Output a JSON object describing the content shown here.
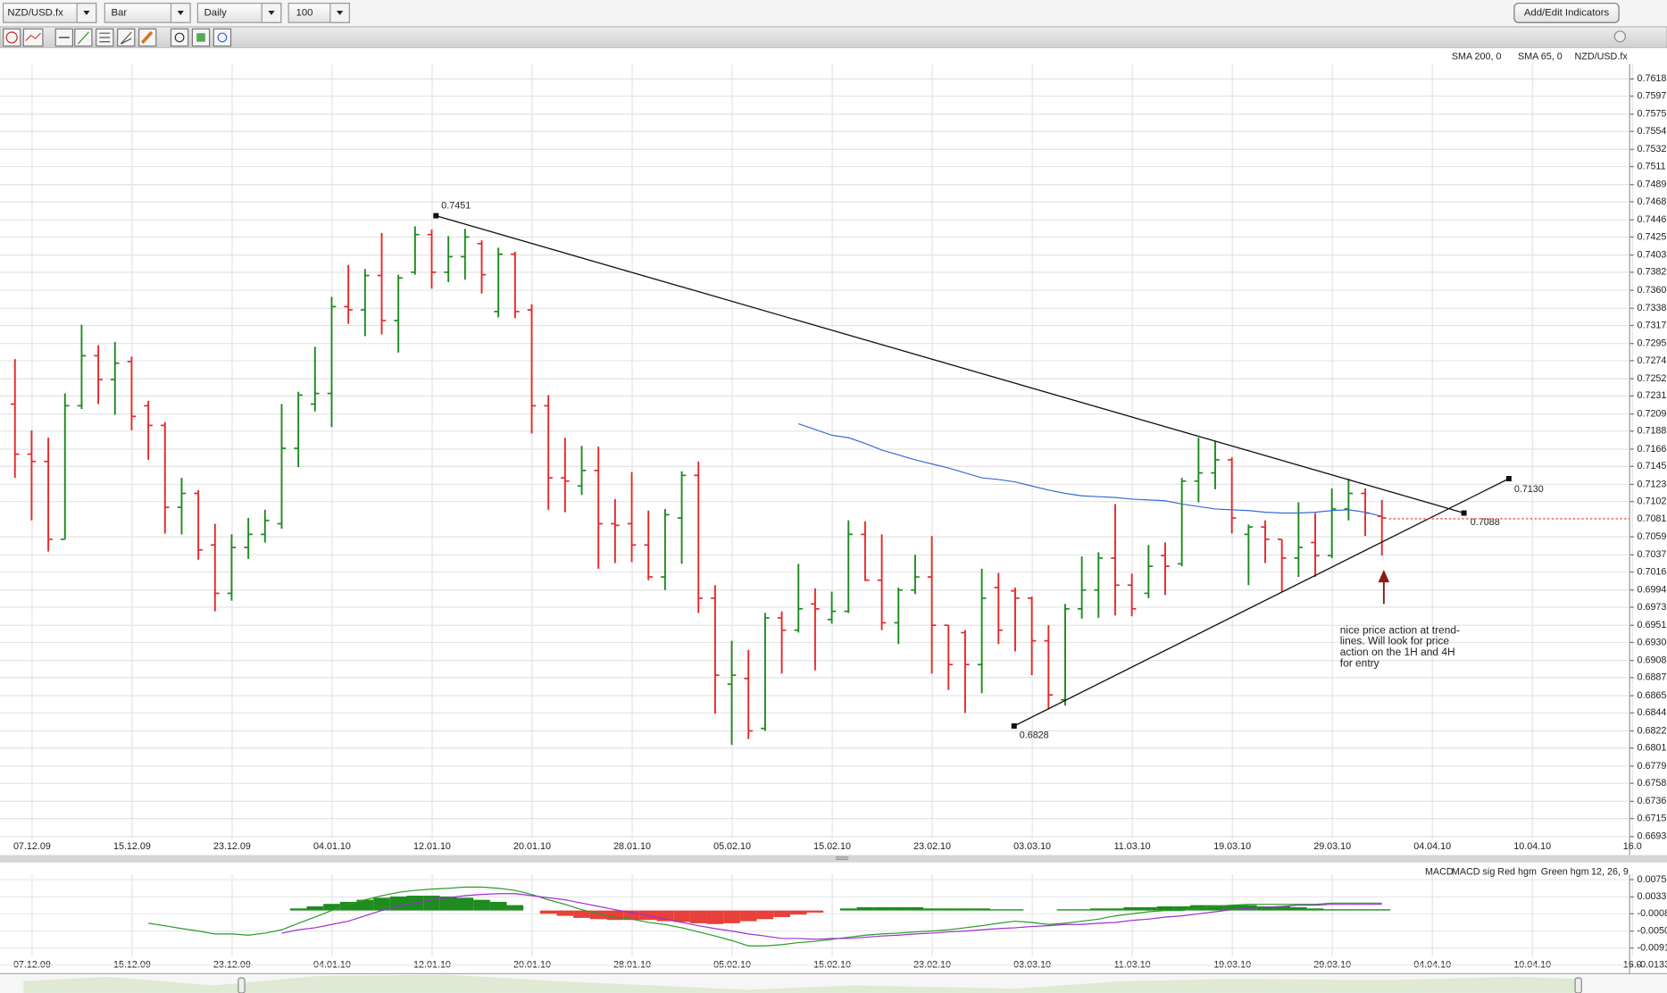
{
  "toolbar": {
    "symbol": "NZD/USD.fx",
    "chart_type": "Bar",
    "interval": "Daily",
    "bars": "100",
    "indicators_button": "Add/Edit Indicators"
  },
  "chart_data": [
    {
      "type": "ohlc",
      "symbol": "NZD/USD.fx",
      "up_color": "#1e8a1e",
      "down_color": "#e8282a",
      "indicator_lines": [
        {
          "name": "SMA 200, 0",
          "color": "#1e8a1e"
        },
        {
          "name": "SMA 65, 0",
          "color": "#3b6bd6",
          "values": [
            null,
            null,
            null,
            null,
            null,
            null,
            null,
            null,
            null,
            null,
            null,
            null,
            null,
            null,
            null,
            null,
            null,
            null,
            null,
            null,
            null,
            null,
            null,
            null,
            null,
            null,
            null,
            null,
            null,
            null,
            null,
            null,
            null,
            null,
            null,
            null,
            null,
            null,
            null,
            null,
            null,
            null,
            null,
            null,
            null,
            null,
            null,
            0.7197,
            0.719,
            0.7183,
            0.718,
            0.7173,
            0.7165,
            0.7159,
            0.7153,
            0.7148,
            0.7143,
            0.7137,
            0.7131,
            0.7129,
            0.7126,
            0.7121,
            0.7116,
            0.7112,
            0.7109,
            0.7108,
            0.7107,
            0.7105,
            0.7104,
            0.7103,
            0.7099,
            0.7096,
            0.7093,
            0.7092,
            0.7091,
            0.7089,
            0.7088,
            0.7088,
            0.7089,
            0.7091,
            0.7092,
            0.7089,
            0.7084
          ]
        }
      ],
      "x_labels": [
        "07.12.09",
        "15.12.09",
        "23.12.09",
        "04.01.10",
        "12.01.10",
        "20.01.10",
        "28.01.10",
        "05.02.10",
        "15.02.10",
        "23.02.10",
        "03.03.10",
        "11.03.10",
        "19.03.10",
        "29.03.10",
        "04.04.10",
        "10.04.10",
        "16.0"
      ],
      "ylim": [
        0.669,
        0.7636
      ],
      "yticks": [
        0.7618,
        0.7597,
        0.7575,
        0.7554,
        0.7532,
        0.7511,
        0.7489,
        0.7468,
        0.7446,
        0.7425,
        0.7403,
        0.7382,
        {
          "value": 0.736,
          "label": "0.7360"
        },
        0.7338,
        0.7317,
        0.7295,
        0.7274,
        0.7252,
        0.7231,
        0.7209,
        0.7188,
        0.7166,
        0.7145,
        0.7123,
        0.7102,
        0.7059,
        0.7037,
        0.7016,
        0.6994,
        0.6973,
        0.6951,
        {
          "value": 0.693,
          "label": "0.6930"
        },
        0.6908,
        0.6887,
        0.6865,
        0.6844,
        0.6822,
        0.6801,
        0.6779,
        0.6758,
        0.6736,
        0.6715,
        0.6693
      ],
      "grid": true,
      "last_price": {
        "value": 0.7081,
        "color": "#e8282a"
      },
      "trendlines": [
        {
          "values": [
            0.7451,
            0.7088
          ],
          "value_labels": [
            "0.7451",
            "0.7088"
          ],
          "color": "#111111"
        },
        {
          "values": [
            0.6828,
            0.713
          ],
          "value_labels": [
            "0.6828",
            "0.7130"
          ],
          "color": "#111111"
        }
      ],
      "annotation": {
        "lines": [
          "nice price action at trend-",
          "lines. Will look for price",
          "action on the 1H and 4H",
          "for entry"
        ],
        "arrow_color": "#8b1a1a"
      },
      "ohlc": [
        [
          0.7221,
          0.7276,
          0.7131,
          0.716
        ],
        [
          0.716,
          0.7189,
          0.7079,
          0.7151
        ],
        [
          0.7151,
          0.718,
          0.7041,
          0.7056
        ],
        [
          0.7056,
          0.7234,
          0.7056,
          0.7219
        ],
        [
          0.7219,
          0.7318,
          0.7215,
          0.728
        ],
        [
          0.728,
          0.7293,
          0.7221,
          0.7251
        ],
        [
          0.7251,
          0.7297,
          0.7208,
          0.7271
        ],
        [
          0.7273,
          0.7279,
          0.7189,
          0.7206
        ],
        [
          0.7219,
          0.7225,
          0.7153,
          0.7195
        ],
        [
          0.7195,
          0.7199,
          0.7063,
          0.7095
        ],
        [
          0.7095,
          0.7131,
          0.7062,
          0.7112
        ],
        [
          0.7112,
          0.7116,
          0.7031,
          0.7043
        ],
        [
          0.7049,
          0.7075,
          0.6968,
          0.699
        ],
        [
          0.699,
          0.7062,
          0.6981,
          0.7046
        ],
        [
          0.7046,
          0.7082,
          0.7032,
          0.7062
        ],
        [
          0.7062,
          0.7092,
          0.7052,
          0.7079
        ],
        [
          0.7075,
          0.7221,
          0.7069,
          0.7167
        ],
        [
          0.7167,
          0.7236,
          0.7144,
          0.7232
        ],
        [
          0.7221,
          0.7291,
          0.7212,
          0.7234
        ],
        [
          0.7234,
          0.7352,
          0.7193,
          0.734
        ],
        [
          0.734,
          0.7391,
          0.7319,
          0.7336
        ],
        [
          0.7336,
          0.7386,
          0.7304,
          0.7378
        ],
        [
          0.7378,
          0.743,
          0.7306,
          0.7323
        ],
        [
          0.7323,
          0.7379,
          0.7284,
          0.7375
        ],
        [
          0.7382,
          0.7438,
          0.7379,
          0.7428
        ],
        [
          0.7428,
          0.7434,
          0.7362,
          0.7382
        ],
        [
          0.7382,
          0.7426,
          0.737,
          0.7401
        ],
        [
          0.7401,
          0.7435,
          0.7373,
          0.7425
        ],
        [
          0.7417,
          0.7421,
          0.7356,
          0.7379
        ],
        [
          0.7334,
          0.7412,
          0.7327,
          0.7404
        ],
        [
          0.7404,
          0.7407,
          0.7326,
          0.7334
        ],
        [
          0.7336,
          0.7343,
          0.7185,
          0.7219
        ],
        [
          0.7219,
          0.7232,
          0.7092,
          0.7131
        ],
        [
          0.7131,
          0.718,
          0.7089,
          0.7127
        ],
        [
          0.7121,
          0.717,
          0.711,
          0.714
        ],
        [
          0.714,
          0.7169,
          0.702,
          0.7075
        ],
        [
          0.7075,
          0.7105,
          0.7027,
          0.7073
        ],
        [
          0.7075,
          0.7138,
          0.7028,
          0.7049
        ],
        [
          0.7049,
          0.7091,
          0.7006,
          0.701
        ],
        [
          0.701,
          0.7093,
          0.6994,
          0.7086
        ],
        [
          0.7082,
          0.7139,
          0.7026,
          0.7134
        ],
        [
          0.7134,
          0.7151,
          0.6966,
          0.6984
        ],
        [
          0.6984,
          0.7,
          0.6843,
          0.689
        ],
        [
          0.6879,
          0.6932,
          0.6805,
          0.689
        ],
        [
          0.6886,
          0.6921,
          0.6812,
          0.6822
        ],
        [
          0.6825,
          0.6966,
          0.6822,
          0.696
        ],
        [
          0.696,
          0.6968,
          0.6892,
          0.6945
        ],
        [
          0.6945,
          0.7026,
          0.6942,
          0.6971
        ],
        [
          0.6977,
          0.6996,
          0.6896,
          0.6971
        ],
        [
          0.6958,
          0.6992,
          0.6953,
          0.6968
        ],
        [
          0.6968,
          0.7079,
          0.6966,
          0.7062
        ],
        [
          0.7062,
          0.7078,
          0.7005,
          0.7006
        ],
        [
          0.7006,
          0.7062,
          0.6945,
          0.6954
        ],
        [
          0.6954,
          0.6997,
          0.6928,
          0.6994
        ],
        [
          0.6994,
          0.7037,
          0.6989,
          0.701
        ],
        [
          0.701,
          0.706,
          0.6892,
          0.6951
        ],
        [
          0.6951,
          0.6951,
          0.6872,
          0.6903
        ],
        [
          0.6942,
          0.6945,
          0.6844,
          0.6903
        ],
        [
          0.6903,
          0.702,
          0.6868,
          0.6984
        ],
        [
          0.6997,
          0.7015,
          0.6928,
          0.6945
        ],
        [
          0.6993,
          0.6997,
          0.6919,
          0.6984
        ],
        [
          0.6984,
          0.6986,
          0.689,
          0.6932
        ],
        [
          0.6932,
          0.6951,
          0.6848,
          0.6866
        ],
        [
          0.686,
          0.6977,
          0.6853,
          0.6971
        ],
        [
          0.6971,
          0.7035,
          0.6959,
          0.6994
        ],
        [
          0.6994,
          0.704,
          0.696,
          0.7033
        ],
        [
          0.7033,
          0.7099,
          0.6963,
          0.7
        ],
        [
          0.7,
          0.7014,
          0.6962,
          0.6971
        ],
        [
          0.699,
          0.7049,
          0.6984,
          0.7023
        ],
        [
          0.7036,
          0.7052,
          0.6988,
          0.7023
        ],
        [
          0.7026,
          0.7131,
          0.7023,
          0.7127
        ],
        [
          0.7127,
          0.718,
          0.7101,
          0.7137
        ],
        [
          0.7137,
          0.7176,
          0.7117,
          0.7153
        ],
        [
          0.7153,
          0.7156,
          0.7063,
          0.7082
        ],
        [
          0.7062,
          0.7074,
          0.7,
          0.7071
        ],
        [
          0.7071,
          0.7079,
          0.7027,
          0.7056
        ],
        [
          0.7056,
          0.7056,
          0.6992,
          0.7033
        ],
        [
          0.7033,
          0.7101,
          0.701,
          0.7046
        ],
        [
          0.7052,
          0.7088,
          0.701,
          0.7036
        ],
        [
          0.7036,
          0.7118,
          0.7033,
          0.7093
        ],
        [
          0.7093,
          0.713,
          0.7079,
          0.7112
        ],
        [
          0.7112,
          0.7118,
          0.706,
          0.7088
        ],
        [
          0.7084,
          0.7104,
          0.7036,
          0.7082
        ]
      ]
    },
    {
      "type": "macd",
      "legend": [
        {
          "name": "MACD",
          "color": "#2a9a2a"
        },
        {
          "name": "MACD sig",
          "color": "#9b30d0"
        },
        {
          "name": "Red hgm",
          "color": "#e8403a"
        },
        {
          "name": "Green hgm",
          "color": "#1e8c1e"
        }
      ],
      "params": "12, 26, 9",
      "ylim": [
        -0.0138,
        0.0088
      ],
      "yticks": [
        0.0075,
        0.0033,
        -0.0008,
        {
          "value": -0.005,
          "label": "-0.0050"
        },
        -0.0091,
        -0.0133
      ],
      "macd": [
        null,
        null,
        null,
        null,
        null,
        null,
        null,
        null,
        -0.0031,
        -0.0037,
        -0.0044,
        -0.005,
        -0.0057,
        -0.0057,
        -0.006,
        -0.0055,
        -0.0047,
        -0.0031,
        -0.0016,
        0.0,
        0.0015,
        0.0026,
        0.0036,
        0.0044,
        0.0049,
        0.0052,
        0.0054,
        0.0057,
        0.0057,
        0.0054,
        0.0049,
        0.0039,
        0.0026,
        0.0015,
        0.0002,
        -0.0008,
        -0.0016,
        -0.0021,
        -0.0029,
        -0.0034,
        -0.0042,
        -0.0052,
        -0.0062,
        -0.0073,
        -0.0086,
        -0.0086,
        -0.0083,
        -0.0078,
        -0.0075,
        -0.007,
        -0.0065,
        -0.006,
        -0.0057,
        -0.0055,
        -0.0052,
        -0.005,
        -0.0047,
        -0.0042,
        -0.0037,
        -0.0031,
        -0.0026,
        -0.0029,
        -0.0034,
        -0.0031,
        -0.0026,
        -0.0021,
        -0.0013,
        -0.0008,
        -0.0003,
        0.0,
        0.0,
        0.0005,
        0.001,
        0.0013,
        0.0015,
        0.0015,
        0.0015,
        0.0015,
        0.0015,
        0.0018,
        0.0018,
        0.0018,
        0.0018
      ],
      "signal": [
        null,
        null,
        null,
        null,
        null,
        null,
        null,
        null,
        null,
        null,
        null,
        null,
        null,
        null,
        null,
        null,
        -0.0055,
        -0.0047,
        -0.0042,
        -0.0034,
        -0.0026,
        -0.0013,
        0.0,
        0.001,
        0.0018,
        0.0026,
        0.0031,
        0.0036,
        0.0039,
        0.0041,
        0.0041,
        0.0036,
        0.0031,
        0.0026,
        0.0018,
        0.001,
        0.0002,
        -0.0005,
        -0.0013,
        -0.0021,
        -0.0029,
        -0.0037,
        -0.0044,
        -0.005,
        -0.0057,
        -0.0062,
        -0.0068,
        -0.0068,
        -0.007,
        -0.0068,
        -0.0068,
        -0.0065,
        -0.0062,
        -0.006,
        -0.0057,
        -0.0055,
        -0.0052,
        -0.005,
        -0.0047,
        -0.0044,
        -0.0042,
        -0.0039,
        -0.0037,
        -0.0034,
        -0.0034,
        -0.0031,
        -0.0029,
        -0.0024,
        -0.0021,
        -0.0016,
        -0.0013,
        -0.0008,
        -0.0003,
        0.0002,
        0.0005,
        0.0008,
        0.001,
        0.0013,
        0.0013,
        0.0015,
        0.0015,
        0.0015,
        0.0015
      ],
      "histogram": [
        null,
        null,
        null,
        null,
        null,
        null,
        null,
        null,
        null,
        null,
        null,
        null,
        null,
        null,
        null,
        null,
        0.0,
        0.0005,
        0.001,
        0.0016,
        0.0021,
        0.0026,
        0.0031,
        0.0034,
        0.0036,
        0.0036,
        0.0034,
        0.0031,
        0.0026,
        0.0021,
        0.0013,
        0.0,
        -0.0008,
        -0.0013,
        -0.0018,
        -0.0021,
        -0.0023,
        -0.0023,
        -0.0023,
        -0.0026,
        -0.0028,
        -0.0031,
        -0.0033,
        -0.0031,
        -0.0026,
        -0.0021,
        -0.0016,
        -0.001,
        -0.0005,
        0.0,
        0.0005,
        0.0008,
        0.0008,
        0.0008,
        0.0008,
        0.0005,
        0.0005,
        0.0005,
        0.0005,
        0.0003,
        0.0003,
        0.0,
        0.0,
        0.0003,
        0.0003,
        0.0005,
        0.0005,
        0.0008,
        0.0008,
        0.001,
        0.001,
        0.0013,
        0.0013,
        0.0013,
        0.0013,
        0.001,
        0.001,
        0.0008,
        0.0005,
        0.0003,
        0.0003,
        0.0003,
        0.0003
      ]
    }
  ]
}
